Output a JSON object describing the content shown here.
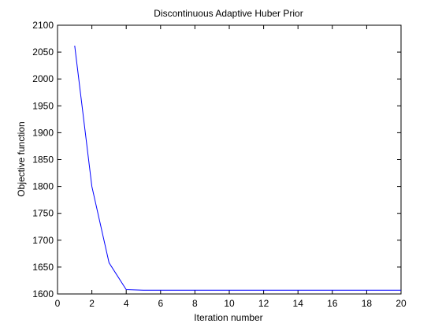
{
  "chart_data": {
    "type": "line",
    "title": "Discontinuous Adaptive Huber Prior",
    "xlabel": "Iteration number",
    "ylabel": "Objective function",
    "xlim": [
      0,
      20
    ],
    "ylim": [
      1600,
      2100
    ],
    "xticks": [
      0,
      2,
      4,
      6,
      8,
      10,
      12,
      14,
      16,
      18,
      20
    ],
    "yticks": [
      1600,
      1650,
      1700,
      1750,
      1800,
      1850,
      1900,
      1950,
      2000,
      2050,
      2100
    ],
    "grid": false,
    "series": [
      {
        "color": "#0000ff",
        "x": [
          1,
          2,
          3,
          4,
          5,
          6,
          7,
          8,
          9,
          10,
          11,
          12,
          13,
          14,
          15,
          16,
          17,
          18,
          19,
          20
        ],
        "y": [
          2062,
          1800,
          1658,
          1608,
          1607,
          1607,
          1607,
          1607,
          1607,
          1607,
          1607,
          1607,
          1607,
          1607,
          1607,
          1607,
          1607,
          1607,
          1607,
          1607
        ]
      }
    ]
  }
}
